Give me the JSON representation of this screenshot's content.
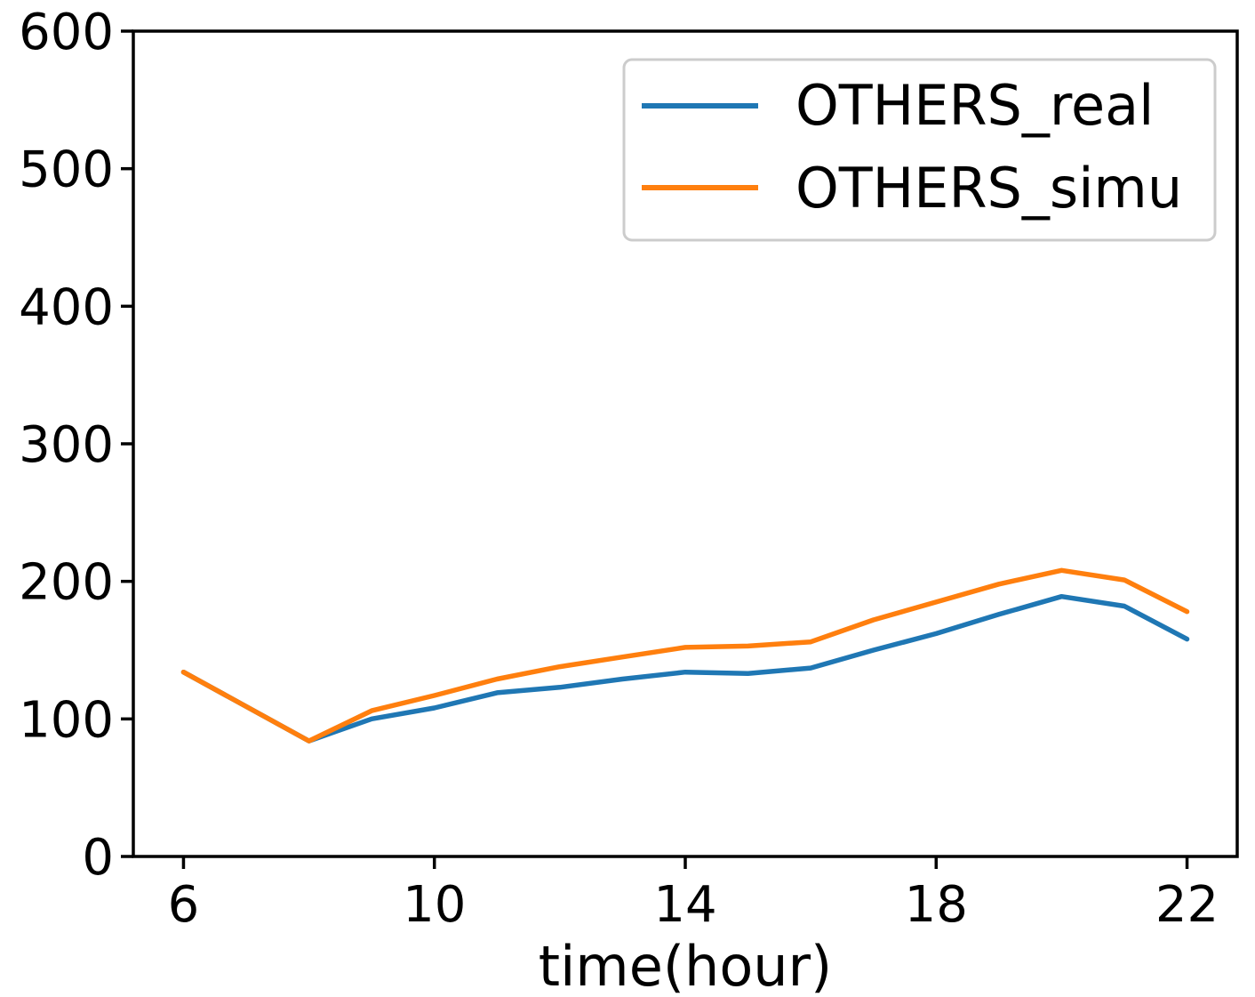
{
  "chart_data": {
    "type": "line",
    "title": "",
    "xlabel": "time(hour)",
    "ylabel": "",
    "xlim": [
      5.2,
      22.8
    ],
    "ylim": [
      0,
      600
    ],
    "xticks": [
      6,
      10,
      14,
      18,
      22
    ],
    "yticks": [
      0,
      100,
      200,
      300,
      400,
      500,
      600
    ],
    "grid": false,
    "legend": {
      "position": "upper right"
    },
    "x": [
      6,
      7,
      8,
      9,
      10,
      11,
      12,
      13,
      14,
      15,
      16,
      17,
      18,
      19,
      20,
      21,
      22
    ],
    "series": [
      {
        "name": "OTHERS_real",
        "color": "#1f77b4",
        "values": [
          134,
          109,
          84,
          100,
          108,
          119,
          123,
          129,
          134,
          133,
          137,
          150,
          162,
          176,
          189,
          182,
          158
        ]
      },
      {
        "name": "OTHERS_simu",
        "color": "#ff7f0e",
        "values": [
          134,
          109,
          84,
          106,
          117,
          129,
          138,
          145,
          152,
          153,
          156,
          172,
          185,
          198,
          208,
          201,
          178
        ]
      }
    ]
  },
  "colors": {
    "axis": "#000000",
    "legend_border": "#cccccc",
    "background": "#ffffff"
  }
}
